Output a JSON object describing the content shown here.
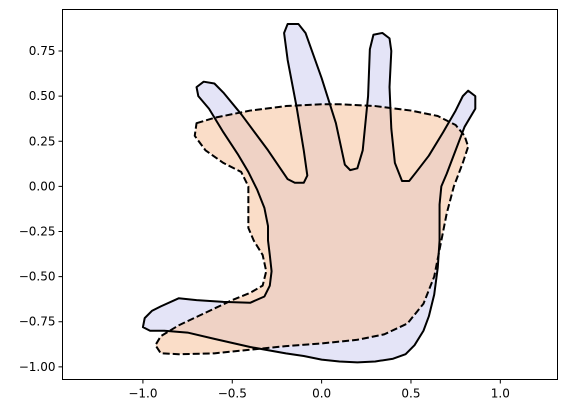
{
  "chart_data": {
    "type": "area",
    "title": "",
    "xlabel": "",
    "ylabel": "",
    "xlim": [
      -1.45,
      1.32
    ],
    "ylim": [
      -1.07,
      0.98
    ],
    "grid": false,
    "legend": "none",
    "xticks": [
      {
        "value": -1.0,
        "label": "−1.0"
      },
      {
        "value": -0.5,
        "label": "−0.5"
      },
      {
        "value": 0.0,
        "label": "0.0"
      },
      {
        "value": 0.5,
        "label": "0.5"
      },
      {
        "value": 1.0,
        "label": "1.0"
      }
    ],
    "yticks": [
      {
        "value": 0.75,
        "label": "0.75"
      },
      {
        "value": 0.5,
        "label": "0.50"
      },
      {
        "value": 0.25,
        "label": "0.25"
      },
      {
        "value": 0.0,
        "label": "0.00"
      },
      {
        "value": -0.25,
        "label": "−0.25"
      },
      {
        "value": -0.5,
        "label": "−0.50"
      },
      {
        "value": -0.75,
        "label": "−0.75"
      },
      {
        "value": -1.0,
        "label": "−1.00"
      }
    ],
    "series": [
      {
        "id": "hand-shape",
        "fill": "#e4e4f7",
        "stroke": "#000000",
        "dashed": false,
        "points": [
          [
            -1.0,
            -0.78
          ],
          [
            -0.99,
            -0.73
          ],
          [
            -0.95,
            -0.69
          ],
          [
            -0.9,
            -0.665
          ],
          [
            -0.8,
            -0.62
          ],
          [
            -0.7,
            -0.63
          ],
          [
            -0.55,
            -0.64
          ],
          [
            -0.4,
            -0.645
          ],
          [
            -0.32,
            -0.61
          ],
          [
            -0.29,
            -0.55
          ],
          [
            -0.28,
            -0.47
          ],
          [
            -0.29,
            -0.38
          ],
          [
            -0.3,
            -0.3
          ],
          [
            -0.3,
            -0.22
          ],
          [
            -0.32,
            -0.12
          ],
          [
            -0.36,
            -0.02
          ],
          [
            -0.41,
            0.08
          ],
          [
            -0.47,
            0.18
          ],
          [
            -0.55,
            0.3
          ],
          [
            -0.63,
            0.43
          ],
          [
            -0.69,
            0.5
          ],
          [
            -0.7,
            0.55
          ],
          [
            -0.66,
            0.58
          ],
          [
            -0.6,
            0.57
          ],
          [
            -0.55,
            0.52
          ],
          [
            -0.45,
            0.4
          ],
          [
            -0.3,
            0.2
          ],
          [
            -0.19,
            0.04
          ],
          [
            -0.15,
            0.02
          ],
          [
            -0.1,
            0.02
          ],
          [
            -0.08,
            0.06
          ],
          [
            -0.1,
            0.2
          ],
          [
            -0.14,
            0.44
          ],
          [
            -0.19,
            0.7
          ],
          [
            -0.21,
            0.85
          ],
          [
            -0.19,
            0.9
          ],
          [
            -0.13,
            0.9
          ],
          [
            -0.09,
            0.85
          ],
          [
            0.0,
            0.6
          ],
          [
            0.08,
            0.35
          ],
          [
            0.13,
            0.12
          ],
          [
            0.16,
            0.09
          ],
          [
            0.2,
            0.1
          ],
          [
            0.23,
            0.2
          ],
          [
            0.26,
            0.5
          ],
          [
            0.27,
            0.76
          ],
          [
            0.29,
            0.84
          ],
          [
            0.34,
            0.85
          ],
          [
            0.38,
            0.82
          ],
          [
            0.39,
            0.75
          ],
          [
            0.38,
            0.55
          ],
          [
            0.39,
            0.32
          ],
          [
            0.41,
            0.13
          ],
          [
            0.45,
            0.03
          ],
          [
            0.49,
            0.03
          ],
          [
            0.53,
            0.08
          ],
          [
            0.6,
            0.17
          ],
          [
            0.68,
            0.3
          ],
          [
            0.75,
            0.42
          ],
          [
            0.79,
            0.5
          ],
          [
            0.82,
            0.53
          ],
          [
            0.86,
            0.5
          ],
          [
            0.86,
            0.43
          ],
          [
            0.8,
            0.33
          ],
          [
            0.75,
            0.2
          ],
          [
            0.7,
            0.07
          ],
          [
            0.67,
            0.0
          ],
          [
            0.66,
            -0.1
          ],
          [
            0.66,
            -0.2
          ],
          [
            0.66,
            -0.3
          ],
          [
            0.65,
            -0.45
          ],
          [
            0.63,
            -0.6
          ],
          [
            0.6,
            -0.72
          ],
          [
            0.57,
            -0.8
          ],
          [
            0.52,
            -0.88
          ],
          [
            0.47,
            -0.93
          ],
          [
            0.4,
            -0.955
          ],
          [
            0.3,
            -0.97
          ],
          [
            0.2,
            -0.975
          ],
          [
            0.1,
            -0.97
          ],
          [
            0.0,
            -0.96
          ],
          [
            -0.1,
            -0.94
          ],
          [
            -0.2,
            -0.925
          ],
          [
            -0.4,
            -0.89
          ],
          [
            -0.6,
            -0.845
          ],
          [
            -0.75,
            -0.81
          ],
          [
            -0.88,
            -0.8
          ],
          [
            -0.96,
            -0.8
          ],
          [
            -1.0,
            -0.78
          ]
        ]
      },
      {
        "id": "blob-shape",
        "fill": "#f7c7a3",
        "stroke": "#000000",
        "dashed": true,
        "points": [
          [
            -0.7,
            0.35
          ],
          [
            -0.6,
            0.38
          ],
          [
            -0.4,
            0.42
          ],
          [
            -0.2,
            0.445
          ],
          [
            0.0,
            0.455
          ],
          [
            0.1,
            0.455
          ],
          [
            0.3,
            0.445
          ],
          [
            0.5,
            0.42
          ],
          [
            0.65,
            0.39
          ],
          [
            0.75,
            0.34
          ],
          [
            0.8,
            0.28
          ],
          [
            0.82,
            0.22
          ],
          [
            0.79,
            0.13
          ],
          [
            0.74,
            0.0
          ],
          [
            0.7,
            -0.15
          ],
          [
            0.67,
            -0.3
          ],
          [
            0.63,
            -0.5
          ],
          [
            0.57,
            -0.65
          ],
          [
            0.48,
            -0.76
          ],
          [
            0.35,
            -0.82
          ],
          [
            0.2,
            -0.85
          ],
          [
            0.0,
            -0.87
          ],
          [
            -0.2,
            -0.885
          ],
          [
            -0.4,
            -0.905
          ],
          [
            -0.6,
            -0.925
          ],
          [
            -0.8,
            -0.93
          ],
          [
            -0.9,
            -0.925
          ],
          [
            -0.93,
            -0.88
          ],
          [
            -0.9,
            -0.83
          ],
          [
            -0.8,
            -0.77
          ],
          [
            -0.65,
            -0.7
          ],
          [
            -0.5,
            -0.63
          ],
          [
            -0.4,
            -0.59
          ],
          [
            -0.33,
            -0.55
          ],
          [
            -0.31,
            -0.47
          ],
          [
            -0.33,
            -0.38
          ],
          [
            -0.38,
            -0.3
          ],
          [
            -0.41,
            -0.23
          ],
          [
            -0.41,
            -0.1
          ],
          [
            -0.41,
            0.0
          ],
          [
            -0.45,
            0.08
          ],
          [
            -0.55,
            0.13
          ],
          [
            -0.65,
            0.2
          ],
          [
            -0.71,
            0.28
          ],
          [
            -0.7,
            0.35
          ]
        ]
      }
    ]
  }
}
